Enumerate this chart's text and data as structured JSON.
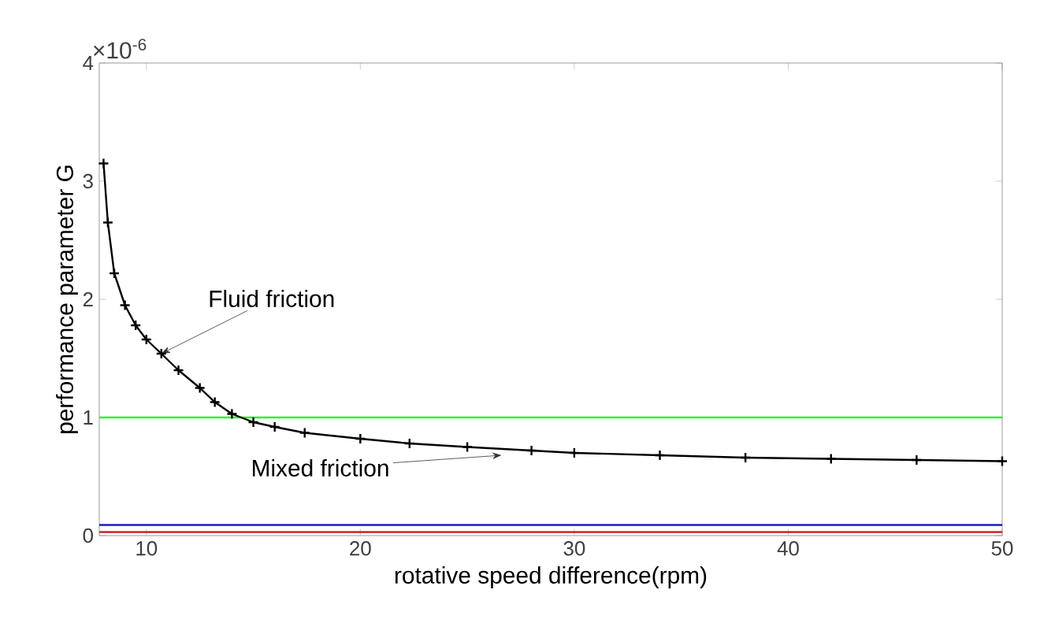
{
  "chart_data": {
    "type": "line",
    "xlabel": "rotative speed difference(rpm)",
    "ylabel": "performance parameter G",
    "x": [
      8,
      8.2,
      8.5,
      9,
      9.5,
      10,
      10.7,
      11.5,
      12.5,
      13.2,
      14,
      15,
      16,
      17.4,
      20,
      22.3,
      25,
      28,
      30,
      34,
      38,
      42,
      46,
      50
    ],
    "series": [
      {
        "color": "#000000",
        "values": [
          3.15,
          2.65,
          2.22,
          1.95,
          1.78,
          1.66,
          1.54,
          1.4,
          1.25,
          1.13,
          1.03,
          0.96,
          0.92,
          0.87,
          0.82,
          0.78,
          0.75,
          0.72,
          0.7,
          0.68,
          0.66,
          0.65,
          0.64,
          0.63
        ]
      }
    ],
    "marker": "cross",
    "xlim": [
      7.8,
      50
    ],
    "ylim": [
      0,
      4
    ],
    "xticks": [
      10,
      20,
      30,
      40,
      50
    ],
    "yticks": [
      0,
      1,
      2,
      3,
      4
    ],
    "ref_lines": [
      {
        "axis": "y",
        "value": 1,
        "color": "#33ee33"
      },
      {
        "axis": "y",
        "value": 0.09,
        "color": "#1a1acc"
      },
      {
        "axis": "y",
        "value": 0.03,
        "color": "#cc2222"
      }
    ],
    "annotations": [
      "×10$^{-6}$",
      {
        "text": "Fluid friction",
        "x": 10.7,
        "y": 1.54
      },
      {
        "text": "Mixed friction",
        "x": 26.6,
        "y": 0.68
      }
    ]
  }
}
